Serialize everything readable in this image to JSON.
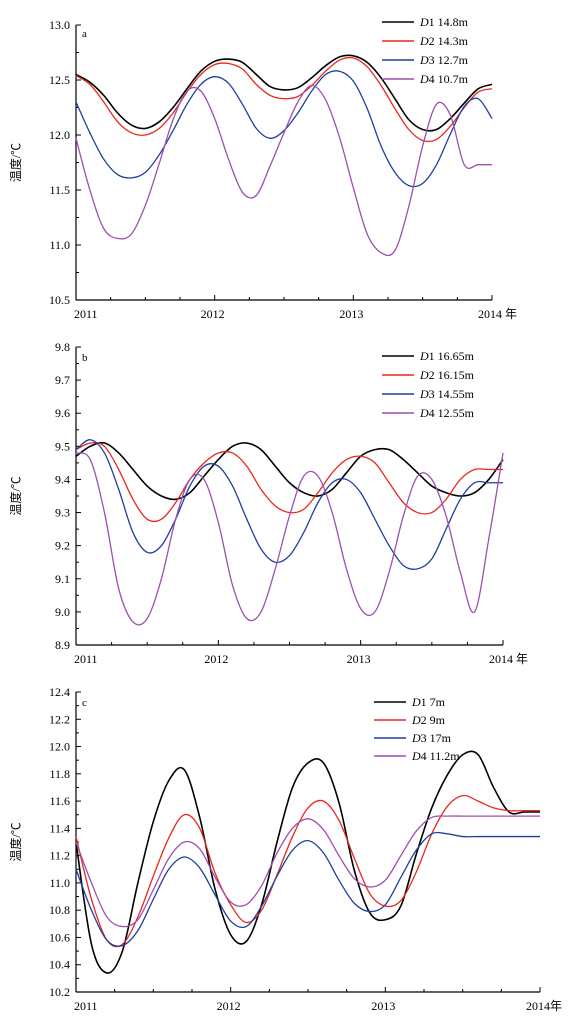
{
  "chart_data": [
    {
      "type": "line",
      "panel": "a",
      "title": "",
      "xlabel": "",
      "ylabel": "温度/℃",
      "x_ticks": [
        "2011",
        "2012",
        "2013",
        "2014 年"
      ],
      "xlim": [
        2011,
        2014
      ],
      "ylim": [
        10.5,
        13.0
      ],
      "y_ticks": [
        "10.5",
        "11.0",
        "11.5",
        "12.0",
        "12.5",
        "13.0"
      ],
      "grid": false,
      "legend_position": "top-right",
      "series": [
        {
          "name": "D1",
          "depth": "14.8m",
          "color": "#000000",
          "x": [
            2011.0,
            2011.1,
            2011.2,
            2011.3,
            2011.4,
            2011.5,
            2011.6,
            2011.7,
            2011.8,
            2011.9,
            2012.0,
            2012.1,
            2012.2,
            2012.3,
            2012.4,
            2012.5,
            2012.6,
            2012.7,
            2012.8,
            2012.9,
            2013.0,
            2013.1,
            2013.2,
            2013.3,
            2013.4,
            2013.5,
            2013.6,
            2013.7,
            2013.8,
            2013.9,
            2014.0
          ],
          "y": [
            12.55,
            12.48,
            12.36,
            12.2,
            12.09,
            12.06,
            12.12,
            12.25,
            12.42,
            12.58,
            12.67,
            12.69,
            12.66,
            12.55,
            12.44,
            12.41,
            12.43,
            12.52,
            12.63,
            12.71,
            12.72,
            12.66,
            12.52,
            12.33,
            12.14,
            12.05,
            12.05,
            12.15,
            12.29,
            12.42,
            12.46
          ]
        },
        {
          "name": "D2",
          "depth": "14.3m",
          "color": "#e8281e",
          "x": [
            2011.0,
            2011.1,
            2011.2,
            2011.3,
            2011.4,
            2011.5,
            2011.6,
            2011.7,
            2011.8,
            2011.9,
            2012.0,
            2012.1,
            2012.2,
            2012.3,
            2012.4,
            2012.5,
            2012.6,
            2012.7,
            2012.8,
            2012.9,
            2013.0,
            2013.1,
            2013.2,
            2013.3,
            2013.4,
            2013.5,
            2013.6,
            2013.7,
            2013.8,
            2013.9,
            2014.0
          ],
          "y": [
            12.54,
            12.46,
            12.3,
            12.12,
            12.02,
            12.0,
            12.06,
            12.2,
            12.39,
            12.55,
            12.64,
            12.65,
            12.6,
            12.46,
            12.36,
            12.33,
            12.35,
            12.45,
            12.58,
            12.68,
            12.7,
            12.62,
            12.45,
            12.24,
            12.05,
            11.95,
            11.96,
            12.08,
            12.25,
            12.39,
            12.42
          ]
        },
        {
          "name": "D3",
          "depth": "12.7m",
          "color": "#1f3fa0",
          "x": [
            2011.0,
            2011.1,
            2011.2,
            2011.3,
            2011.4,
            2011.5,
            2011.6,
            2011.7,
            2011.8,
            2011.9,
            2012.0,
            2012.1,
            2012.2,
            2012.3,
            2012.4,
            2012.5,
            2012.6,
            2012.7,
            2012.8,
            2012.9,
            2013.0,
            2013.1,
            2013.2,
            2013.3,
            2013.4,
            2013.5,
            2013.6,
            2013.7,
            2013.8,
            2013.9,
            2014.0
          ],
          "y": [
            12.3,
            12.02,
            11.78,
            11.64,
            11.61,
            11.66,
            11.82,
            12.04,
            12.28,
            12.46,
            12.53,
            12.47,
            12.28,
            12.06,
            11.97,
            12.04,
            12.2,
            12.4,
            12.55,
            12.58,
            12.49,
            12.24,
            11.9,
            11.66,
            11.54,
            11.56,
            11.73,
            12.01,
            12.26,
            12.33,
            12.15
          ]
        },
        {
          "name": "D4",
          "depth": "10.7m",
          "color": "#9e4fb0",
          "x": [
            2011.0,
            2011.1,
            2011.2,
            2011.3,
            2011.4,
            2011.5,
            2011.6,
            2011.7,
            2011.8,
            2011.9,
            2012.0,
            2012.1,
            2012.2,
            2012.3,
            2012.4,
            2012.5,
            2012.6,
            2012.7,
            2012.8,
            2012.9,
            2013.0,
            2013.1,
            2013.2,
            2013.3,
            2013.4,
            2013.5,
            2013.6,
            2013.7,
            2013.8,
            2013.9,
            2014.0
          ],
          "y": [
            11.97,
            11.5,
            11.15,
            11.06,
            11.1,
            11.36,
            11.74,
            12.14,
            12.4,
            12.4,
            12.15,
            11.78,
            11.48,
            11.45,
            11.72,
            12.02,
            12.3,
            12.45,
            12.32,
            11.98,
            11.52,
            11.1,
            10.93,
            10.95,
            11.35,
            11.9,
            12.28,
            12.18,
            11.73,
            11.73,
            11.73
          ]
        }
      ]
    },
    {
      "type": "line",
      "panel": "b",
      "title": "",
      "xlabel": "",
      "ylabel": "温度/℃",
      "x_ticks": [
        "2011",
        "2012",
        "2013",
        "2014 年"
      ],
      "xlim": [
        2011,
        2014
      ],
      "ylim": [
        8.9,
        9.8
      ],
      "y_ticks": [
        "8.9",
        "9.0",
        "9.1",
        "9.2",
        "9.3",
        "9.4",
        "9.5",
        "9.6",
        "9.7",
        "9.8"
      ],
      "grid": false,
      "legend_position": "top-right",
      "series": [
        {
          "name": "D1",
          "depth": "16.65m",
          "color": "#000000",
          "x": [
            2011.0,
            2011.1,
            2011.2,
            2011.3,
            2011.4,
            2011.5,
            2011.6,
            2011.7,
            2011.8,
            2011.9,
            2012.0,
            2012.1,
            2012.2,
            2012.3,
            2012.4,
            2012.5,
            2012.6,
            2012.7,
            2012.8,
            2012.9,
            2013.0,
            2013.1,
            2013.2,
            2013.3,
            2013.4,
            2013.5,
            2013.6,
            2013.7,
            2013.8,
            2013.9,
            2014.0
          ],
          "y": [
            9.47,
            9.5,
            9.51,
            9.48,
            9.43,
            9.38,
            9.35,
            9.34,
            9.36,
            9.41,
            9.46,
            9.5,
            9.51,
            9.49,
            9.44,
            9.39,
            9.36,
            9.35,
            9.37,
            9.42,
            9.47,
            9.49,
            9.49,
            9.46,
            9.42,
            9.38,
            9.36,
            9.35,
            9.36,
            9.4,
            9.46
          ]
        },
        {
          "name": "D2",
          "depth": "16.15m",
          "color": "#e8281e",
          "x": [
            2011.0,
            2011.1,
            2011.2,
            2011.3,
            2011.4,
            2011.5,
            2011.6,
            2011.7,
            2011.8,
            2011.9,
            2012.0,
            2012.1,
            2012.2,
            2012.3,
            2012.4,
            2012.5,
            2012.6,
            2012.7,
            2012.8,
            2012.9,
            2013.0,
            2013.1,
            2013.2,
            2013.3,
            2013.4,
            2013.5,
            2013.6,
            2013.7,
            2013.8,
            2013.9,
            2014.0
          ],
          "y": [
            9.49,
            9.51,
            9.5,
            9.43,
            9.34,
            9.28,
            9.28,
            9.33,
            9.4,
            9.45,
            9.48,
            9.48,
            9.44,
            9.37,
            9.32,
            9.3,
            9.31,
            9.36,
            9.42,
            9.46,
            9.47,
            9.45,
            9.39,
            9.33,
            9.3,
            9.3,
            9.34,
            9.4,
            9.43,
            9.43,
            9.43
          ]
        },
        {
          "name": "D3",
          "depth": "14.55m",
          "color": "#1f3fa0",
          "x": [
            2011.0,
            2011.1,
            2011.2,
            2011.3,
            2011.4,
            2011.5,
            2011.6,
            2011.7,
            2011.8,
            2011.9,
            2012.0,
            2012.1,
            2012.2,
            2012.3,
            2012.4,
            2012.5,
            2012.6,
            2012.7,
            2012.8,
            2012.9,
            2013.0,
            2013.1,
            2013.2,
            2013.3,
            2013.4,
            2013.5,
            2013.6,
            2013.7,
            2013.8,
            2013.9,
            2014.0
          ],
          "y": [
            9.49,
            9.52,
            9.48,
            9.37,
            9.24,
            9.18,
            9.2,
            9.28,
            9.38,
            9.44,
            9.44,
            9.38,
            9.28,
            9.19,
            9.15,
            9.17,
            9.24,
            9.33,
            9.39,
            9.4,
            9.36,
            9.28,
            9.2,
            9.14,
            9.13,
            9.16,
            9.25,
            9.34,
            9.39,
            9.39,
            9.39
          ]
        },
        {
          "name": "D4",
          "depth": "12.55m",
          "color": "#9e4fb0",
          "x": [
            2011.0,
            2011.1,
            2011.2,
            2011.3,
            2011.4,
            2011.5,
            2011.6,
            2011.7,
            2011.8,
            2011.9,
            2012.0,
            2012.1,
            2012.2,
            2012.3,
            2012.4,
            2012.5,
            2012.6,
            2012.7,
            2012.8,
            2012.9,
            2013.0,
            2013.1,
            2013.2,
            2013.3,
            2013.4,
            2013.5,
            2013.6,
            2013.7,
            2013.8,
            2013.9,
            2014.0
          ],
          "y": [
            9.48,
            9.46,
            9.3,
            9.07,
            8.97,
            8.98,
            9.1,
            9.28,
            9.4,
            9.4,
            9.27,
            9.08,
            8.98,
            9.0,
            9.13,
            9.29,
            9.41,
            9.41,
            9.3,
            9.13,
            9.01,
            9.0,
            9.12,
            9.29,
            9.41,
            9.4,
            9.29,
            9.12,
            9.0,
            9.22,
            9.48
          ]
        }
      ]
    },
    {
      "type": "line",
      "panel": "c",
      "title": "",
      "xlabel": "",
      "ylabel": "温度/℃",
      "x_ticks": [
        "2011",
        "2012",
        "2013",
        "2014年"
      ],
      "xlim": [
        2011,
        2014
      ],
      "ylim": [
        10.2,
        12.4
      ],
      "y_ticks": [
        "10.2",
        "10.4",
        "10.6",
        "10.8",
        "11.0",
        "11.2",
        "11.4",
        "11.6",
        "11.8",
        "12.0",
        "12.2",
        "12.4"
      ],
      "grid": false,
      "legend_position": "top-right",
      "series": [
        {
          "name": "D1",
          "depth": "7m",
          "color": "#000000",
          "x": [
            2011.0,
            2011.1,
            2011.2,
            2011.3,
            2011.4,
            2011.5,
            2011.6,
            2011.7,
            2011.8,
            2011.9,
            2012.0,
            2012.1,
            2012.2,
            2012.3,
            2012.4,
            2012.5,
            2012.6,
            2012.7,
            2012.8,
            2012.9,
            2013.0,
            2013.1,
            2013.2,
            2013.3,
            2013.4,
            2013.5,
            2013.6,
            2013.7,
            2013.8,
            2013.9,
            2014.0
          ],
          "y": [
            11.3,
            10.55,
            10.34,
            10.5,
            11.0,
            11.45,
            11.75,
            11.83,
            11.48,
            10.95,
            10.62,
            10.57,
            10.84,
            11.3,
            11.7,
            11.88,
            11.88,
            11.59,
            11.09,
            10.78,
            10.73,
            10.83,
            11.21,
            11.55,
            11.79,
            11.94,
            11.94,
            11.7,
            11.52,
            11.52,
            11.52
          ]
        },
        {
          "name": "D2",
          "depth": "9m",
          "color": "#e8281e",
          "x": [
            2011.0,
            2011.1,
            2011.2,
            2011.3,
            2011.4,
            2011.5,
            2011.6,
            2011.7,
            2011.8,
            2011.9,
            2012.0,
            2012.1,
            2012.2,
            2012.3,
            2012.4,
            2012.5,
            2012.6,
            2012.7,
            2012.8,
            2012.9,
            2013.0,
            2013.1,
            2013.2,
            2013.3,
            2013.4,
            2013.5,
            2013.6,
            2013.7,
            2013.8,
            2013.9,
            2014.0
          ],
          "y": [
            11.34,
            10.88,
            10.58,
            10.55,
            10.75,
            11.05,
            11.33,
            11.5,
            11.4,
            11.07,
            10.84,
            10.71,
            10.8,
            11.06,
            11.34,
            11.55,
            11.6,
            11.46,
            11.18,
            10.92,
            10.83,
            10.87,
            11.08,
            11.36,
            11.56,
            11.64,
            11.6,
            11.55,
            11.53,
            11.53,
            11.53
          ]
        },
        {
          "name": "D3",
          "depth": "17m",
          "color": "#1f3fa0",
          "x": [
            2011.0,
            2011.1,
            2011.2,
            2011.3,
            2011.4,
            2011.5,
            2011.6,
            2011.7,
            2011.8,
            2011.9,
            2012.0,
            2012.1,
            2012.2,
            2012.3,
            2012.4,
            2012.5,
            2012.6,
            2012.7,
            2012.8,
            2012.9,
            2013.0,
            2013.1,
            2013.2,
            2013.3,
            2013.4,
            2013.5,
            2013.6,
            2013.7,
            2013.8,
            2013.9,
            2014.0
          ],
          "y": [
            11.1,
            10.8,
            10.58,
            10.54,
            10.65,
            10.88,
            11.1,
            11.19,
            11.11,
            10.91,
            10.72,
            10.68,
            10.83,
            11.05,
            11.24,
            11.31,
            11.22,
            11.02,
            10.85,
            10.79,
            10.84,
            11.04,
            11.24,
            11.36,
            11.36,
            11.34,
            11.34,
            11.34,
            11.34,
            11.34,
            11.34
          ]
        },
        {
          "name": "D4",
          "depth": "11.2m",
          "color": "#9e4fb0",
          "x": [
            2011.0,
            2011.1,
            2011.2,
            2011.3,
            2011.4,
            2011.5,
            2011.6,
            2011.7,
            2011.8,
            2011.9,
            2012.0,
            2012.1,
            2012.2,
            2012.3,
            2012.4,
            2012.5,
            2012.6,
            2012.7,
            2012.8,
            2012.9,
            2013.0,
            2013.1,
            2013.2,
            2013.3,
            2013.4,
            2013.5,
            2013.6,
            2013.7,
            2013.8,
            2013.9,
            2014.0
          ],
          "y": [
            11.3,
            11.0,
            10.75,
            10.68,
            10.73,
            10.95,
            11.18,
            11.3,
            11.25,
            11.04,
            10.86,
            10.84,
            10.98,
            11.22,
            11.4,
            11.47,
            11.39,
            11.2,
            11.03,
            10.97,
            11.02,
            11.2,
            11.38,
            11.48,
            11.49,
            11.49,
            11.49,
            11.49,
            11.49,
            11.49,
            11.49
          ]
        }
      ]
    }
  ]
}
